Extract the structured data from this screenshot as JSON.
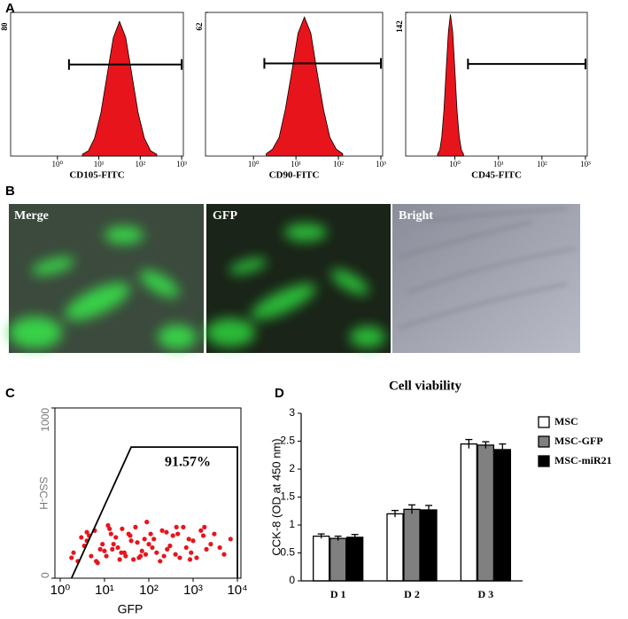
{
  "panel_labels": [
    "A",
    "B",
    "C",
    "D"
  ],
  "images": [
    {
      "label": "Merge"
    },
    {
      "label": "GFP"
    },
    {
      "label": "Bright"
    }
  ],
  "chart_data": [
    {
      "type": "area",
      "xscale": "log",
      "xlabel": "CD105-FITC",
      "color": "#e8141c",
      "x": [
        4,
        5.6,
        7.9,
        11.2,
        15.8,
        22.4,
        31.6,
        44.7,
        63.1,
        89.1,
        125.9,
        177.8,
        251.2
      ],
      "values": [
        1,
        3,
        10,
        24,
        45,
        66,
        75,
        66,
        45,
        24,
        10,
        3,
        1
      ],
      "xlim": [
        0.074,
        1100
      ],
      "ylim": [
        0,
        80
      ],
      "yticks": [
        80
      ],
      "xticks": [
        {
          "value": 1,
          "label": "10⁰"
        },
        {
          "value": 10,
          "label": "10¹"
        },
        {
          "value": 100,
          "label": "10²"
        },
        {
          "value": 1000,
          "label": "10³"
        }
      ],
      "gate": {
        "range": [
          1.9,
          1000
        ],
        "level": 51
      }
    },
    {
      "type": "area",
      "xscale": "log",
      "xlabel": "CD90-FITC",
      "color": "#e8141c",
      "x": [
        2,
        2.8,
        4,
        5.6,
        7.9,
        11.2,
        15.8,
        22.4,
        31.6,
        44.7,
        63.1,
        89.1,
        125.9
      ],
      "values": [
        1,
        3,
        8,
        20,
        36,
        53,
        60,
        53,
        36,
        20,
        8,
        3,
        1
      ],
      "xlim": [
        0.074,
        1100
      ],
      "ylim": [
        0,
        62
      ],
      "yticks": [
        62
      ],
      "xticks": [
        {
          "value": 1,
          "label": "10⁰"
        },
        {
          "value": 10,
          "label": "10¹"
        },
        {
          "value": 100,
          "label": "10²"
        },
        {
          "value": 1000,
          "label": "10³"
        }
      ],
      "gate": {
        "range": [
          1.8,
          1000
        ],
        "level": 40
      }
    },
    {
      "type": "area",
      "xscale": "log",
      "xlabel": "CD45-FITC",
      "color": "#e8141c",
      "x": [
        0.4,
        0.45,
        0.5,
        0.56,
        0.63,
        0.71,
        0.79,
        0.89,
        1,
        1.12,
        1.26,
        1.41,
        1.58
      ],
      "values": [
        2,
        6,
        19,
        45,
        85,
        123,
        140,
        123,
        85,
        45,
        19,
        6,
        2
      ],
      "xlim": [
        0.074,
        1100
      ],
      "ylim": [
        0,
        142
      ],
      "yticks": [
        142
      ],
      "xticks": [
        {
          "value": 1,
          "label": "10⁰"
        },
        {
          "value": 10,
          "label": "10¹"
        },
        {
          "value": 100,
          "label": "10²"
        },
        {
          "value": 1000,
          "label": "10³"
        }
      ],
      "gate": {
        "range": [
          2,
          1000
        ],
        "level": 91
      }
    },
    {
      "type": "scatter",
      "xscale": "log",
      "xlabel": "GFP",
      "ylabel": "SSC-H",
      "color": "#e8141c",
      "annotation": "91.57%",
      "x": [
        2,
        4,
        7,
        12,
        20,
        35,
        60,
        100,
        200,
        400,
        800,
        2000,
        3,
        5,
        9,
        15,
        25,
        45,
        80,
        150,
        300,
        600,
        1200,
        3000,
        2.5,
        6,
        10,
        18,
        30,
        55,
        90,
        180,
        350,
        700,
        1500,
        5000,
        3.5,
        8,
        14,
        22,
        40,
        70,
        120,
        250,
        500,
        1000,
        2500,
        7000,
        1.8,
        4.5,
        11,
        16,
        28,
        50,
        85,
        130,
        260,
        450,
        900,
        1800,
        4,
        6.5,
        13,
        24,
        38,
        65,
        110,
        220,
        420,
        850,
        1700,
        4000
      ],
      "values": [
        150,
        220,
        90,
        310,
        180,
        260,
        120,
        200,
        280,
        140,
        230,
        170,
        240,
        130,
        200,
        170,
        290,
        110,
        230,
        150,
        190,
        300,
        120,
        260,
        100,
        280,
        160,
        240,
        130,
        210,
        330,
        100,
        250,
        180,
        280,
        140,
        190,
        170,
        260,
        110,
        220,
        160,
        180,
        270,
        120,
        220,
        200,
        230,
        120,
        250,
        130,
        200,
        150,
        300,
        140,
        230,
        170,
        260,
        150,
        300,
        270,
        100,
        290,
        150,
        250,
        130,
        260,
        130,
        300,
        110,
        250,
        180
      ],
      "xlim": [
        0.76,
        12000
      ],
      "ylim": [
        0,
        1000
      ],
      "yticks": [
        0,
        1000
      ],
      "xticks": [
        {
          "value": 1,
          "label": "10⁰"
        },
        {
          "value": 10,
          "label": "10¹"
        },
        {
          "value": 100,
          "label": "10²"
        },
        {
          "value": 1000,
          "label": "10³"
        },
        {
          "value": 10000,
          "label": "10⁴"
        }
      ],
      "gate": {
        "x": [
          1.8,
          40,
          10000,
          10000
        ],
        "y": [
          0,
          770,
          770,
          0
        ]
      }
    },
    {
      "type": "bar",
      "title": "Cell viability",
      "ylabel": "CCK-8 (OD at 450 nm)",
      "categories": [
        "D 1",
        "D 2",
        "D 3"
      ],
      "series": [
        {
          "name": "MSC",
          "color": "#ffffff",
          "values": [
            0.8,
            1.2,
            2.45
          ],
          "errors": [
            0.04,
            0.06,
            0.08
          ]
        },
        {
          "name": "MSC-GFP",
          "color": "#808080",
          "values": [
            0.76,
            1.28,
            2.43
          ],
          "errors": [
            0.04,
            0.08,
            0.06
          ]
        },
        {
          "name": "MSC-miR21",
          "color": "#000000",
          "values": [
            0.78,
            1.27,
            2.35
          ],
          "errors": [
            0.05,
            0.08,
            0.1
          ]
        }
      ],
      "ylim": [
        0,
        3
      ],
      "yticks": [
        0,
        0.5,
        1,
        1.5,
        2,
        2.5,
        3
      ],
      "legend": "upper right"
    }
  ]
}
